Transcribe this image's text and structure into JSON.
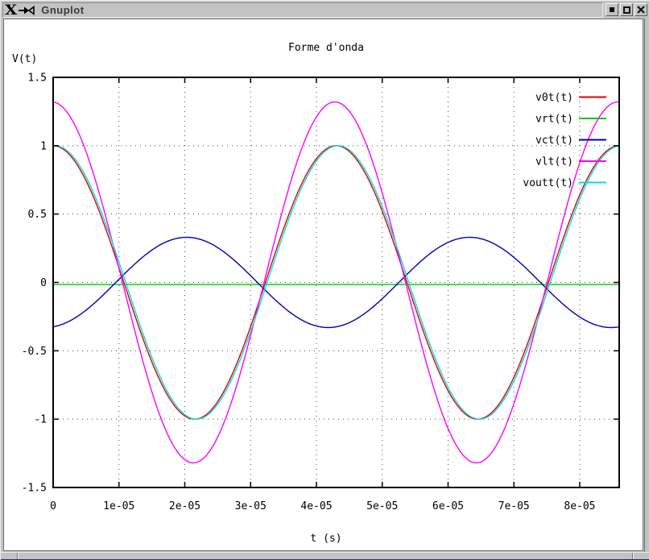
{
  "window": {
    "title": "Gnuplot",
    "logo_glyph": "X",
    "buttons": [
      {
        "name": "iconify",
        "icon": "filled-square"
      },
      {
        "name": "maximize",
        "icon": "hollow-square"
      },
      {
        "name": "close",
        "icon": "x-cross"
      }
    ]
  },
  "chart_data": {
    "type": "line",
    "title": "Forme d'onda",
    "xlabel": "t (s)",
    "ylabel": "V(t)",
    "xlim": [
      0,
      8.6e-05
    ],
    "ylim": [
      -1.5,
      1.5
    ],
    "grid": "dotted",
    "legend_position": "inside-top-right",
    "waveform_period_s": 4.3e-05,
    "x_ticks": [
      {
        "value": 0,
        "label": "0"
      },
      {
        "value": 1e-05,
        "label": "1e-05"
      },
      {
        "value": 2e-05,
        "label": "2e-05"
      },
      {
        "value": 3e-05,
        "label": "3e-05"
      },
      {
        "value": 4e-05,
        "label": "4e-05"
      },
      {
        "value": 5e-05,
        "label": "5e-05"
      },
      {
        "value": 6e-05,
        "label": "6e-05"
      },
      {
        "value": 7e-05,
        "label": "7e-05"
      },
      {
        "value": 8e-05,
        "label": "8e-05"
      }
    ],
    "y_ticks": [
      {
        "value": -1.5,
        "label": "-1.5"
      },
      {
        "value": -1,
        "label": "-1"
      },
      {
        "value": -0.5,
        "label": "-0.5"
      },
      {
        "value": 0,
        "label": "0"
      },
      {
        "value": 0.5,
        "label": "0.5"
      },
      {
        "value": 1,
        "label": "1"
      },
      {
        "value": 1.5,
        "label": "1.5"
      }
    ],
    "series": [
      {
        "name": "v0t(t)",
        "color": "#e60000",
        "amplitude": 1.0,
        "phase_rad": 0.0,
        "offset": 0.0
      },
      {
        "name": "vrt(t)",
        "color": "#00c800",
        "amplitude": 0.0,
        "phase_rad": 0.0,
        "offset": -0.015
      },
      {
        "name": "vct(t)",
        "color": "#0000b4",
        "amplitude": 0.33,
        "phase_rad": 3.32,
        "offset": 0.0
      },
      {
        "name": "vlt(t)",
        "color": "#ff00ff",
        "amplitude": 1.32,
        "phase_rad": 0.03,
        "offset": 0.0
      },
      {
        "name": "voutt(t)",
        "color": "#00e0e0",
        "amplitude": 1.0,
        "phase_rad": -0.04,
        "offset": 0.0
      }
    ]
  }
}
